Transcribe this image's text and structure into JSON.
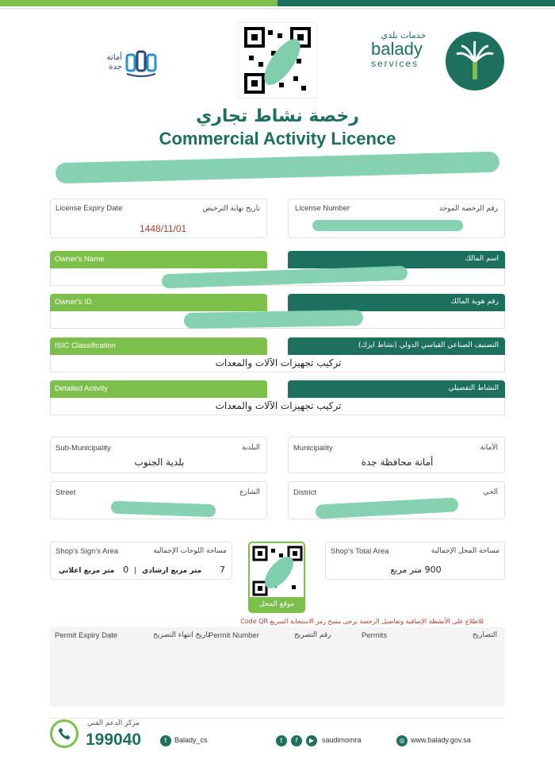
{
  "header": {
    "jeddah_logo_text": "أمانة جدة",
    "balady_ar": "خدمات بلدي",
    "balady_en": "balady",
    "balady_services": "services"
  },
  "title": {
    "ar": "رخصة نشاط تجاري",
    "en": "Commercial Activity Licence"
  },
  "license": {
    "expiry_label_en": "License Expiry Date",
    "expiry_label_ar": "تاريخ نهاية الترخيص",
    "expiry_value": "1448/11/01",
    "number_label_en": "License Number",
    "number_label_ar": "رقم الرخصة الموحد"
  },
  "owner": {
    "name_label_en": "Owner's Name",
    "name_label_ar": "اسم المالك",
    "id_label_en": "Owner's ID",
    "id_label_ar": "رقم هوية المالك"
  },
  "activity": {
    "isic_label_en": "ISIC Classification",
    "isic_label_ar": "التصنيف الصناعي القياسي الدولي (نشاط ايزك)",
    "isic_value": "تركيب تجهيزات الآلات والمعدات",
    "detailed_label_en": "Detailed Activity",
    "detailed_label_ar": "النشاط التفصيلي",
    "detailed_value": "تركيب تجهيزات الآلات والمعدات"
  },
  "location": {
    "sub_municipality_label_en": "Sub-Municipality",
    "sub_municipality_label_ar": "البلدية",
    "sub_municipality_value": "بلدية الجنوب",
    "municipality_label_en": "Municipality",
    "municipality_label_ar": "الأمانة",
    "municipality_value": "أمانة محافظة جدة",
    "street_label_en": "Street",
    "street_label_ar": "الشارع",
    "district_label_en": "District",
    "district_label_ar": "الحي"
  },
  "areas": {
    "sign_label_en": "Shop's Sign's Area",
    "sign_label_ar": "مساحة اللوحات الإجمالية",
    "sign_guide_value": "7",
    "sign_guide_unit": "متر مربع ارشادي",
    "sign_separator": "|",
    "sign_ad_value": "0",
    "sign_ad_unit": "متر مربع اعلاني",
    "total_label_en": "Shop's Total Area",
    "total_label_ar": "مساحة المحل الإجمالية",
    "total_value": "900 متر مربع",
    "qr_label": "موقع المحل"
  },
  "note": "للاطلاع على الأنشطة الإضافية وتفاصيل الرخصة يرجى مسح رمز الاستجابة السريع Code QR",
  "permits": {
    "expiry_en": "Permit Expiry Date",
    "expiry_ar": "تاريخ انتهاء التصريح",
    "number_en": "Permit Number",
    "number_ar": "رقم التصريح",
    "permits_en": "Permits",
    "permits_ar": "التصاريح"
  },
  "footer": {
    "support_label": "مركز الدعم الفني",
    "support_number": "199040",
    "twitter": "Balady_cs",
    "social_handle": "saudimomra",
    "website": "www.balady.gov.sa"
  },
  "colors": {
    "teal": "#1d6f5e",
    "green": "#7cc04b",
    "red": "#c0392b",
    "redaction": "#7fcfae"
  }
}
